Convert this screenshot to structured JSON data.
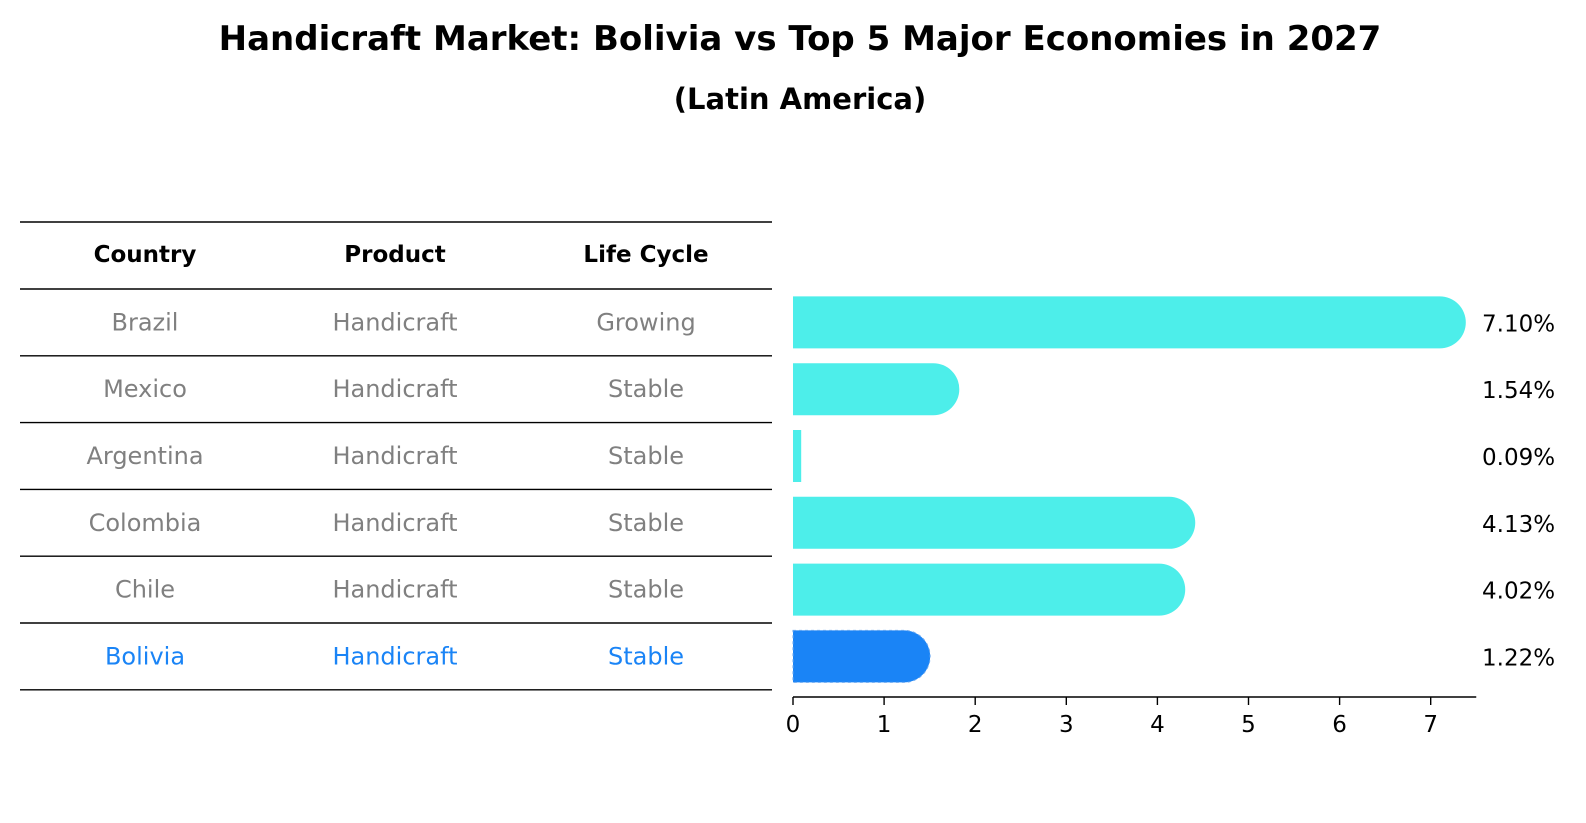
{
  "chart_data": {
    "type": "bar",
    "orientation": "horizontal",
    "title": "Handicraft Market: Bolivia vs Top 5 Major Economies in 2027",
    "subtitle": "(Latin America)",
    "table": {
      "columns": [
        "Country",
        "Product",
        "Life Cycle"
      ],
      "rows": [
        {
          "country": "Brazil",
          "product": "Handicraft",
          "life_cycle": "Growing"
        },
        {
          "country": "Mexico",
          "product": "Handicraft",
          "life_cycle": "Stable"
        },
        {
          "country": "Argentina",
          "product": "Handicraft",
          "life_cycle": "Stable"
        },
        {
          "country": "Colombia",
          "product": "Handicraft",
          "life_cycle": "Stable"
        },
        {
          "country": "Chile",
          "product": "Handicraft",
          "life_cycle": "Stable"
        },
        {
          "country": "Bolivia",
          "product": "Handicraft",
          "life_cycle": "Stable"
        }
      ]
    },
    "categories": [
      "Brazil",
      "Mexico",
      "Argentina",
      "Colombia",
      "Chile",
      "Bolivia"
    ],
    "values": [
      7.1,
      1.54,
      0.09,
      4.13,
      4.02,
      1.22
    ],
    "value_labels": [
      "7.10%",
      "1.54%",
      "0.09%",
      "4.13%",
      "4.02%",
      "1.22%"
    ],
    "highlight": "Bolivia",
    "xlim": [
      0,
      7.5
    ],
    "xticks": [
      0,
      1,
      2,
      3,
      4,
      5,
      6,
      7
    ],
    "xtick_labels": [
      "0",
      "1",
      "2",
      "3",
      "4",
      "5",
      "6",
      "7"
    ],
    "grid": false,
    "colors": {
      "bar": "#4DEEEA",
      "highlight_bar": "#1A84F6",
      "highlight_text": "#1A84F6",
      "cell_text": "#808080",
      "rule": "#000000"
    }
  }
}
